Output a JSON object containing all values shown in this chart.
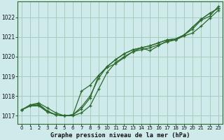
{
  "title": "Graphe pression niveau de la mer (hPa)",
  "bg_color": "#ceeaea",
  "grid_color": "#aaccbb",
  "line_color": "#2d6a2d",
  "marker": "+",
  "xlim": [
    -0.5,
    23.5
  ],
  "ylim": [
    1016.6,
    1022.8
  ],
  "yticks": [
    1017,
    1018,
    1019,
    1020,
    1021,
    1022
  ],
  "xticks": [
    0,
    1,
    2,
    3,
    4,
    5,
    6,
    7,
    8,
    9,
    10,
    11,
    12,
    13,
    14,
    15,
    16,
    17,
    18,
    19,
    20,
    21,
    22,
    23
  ],
  "series": [
    [
      1017.3,
      1017.55,
      1017.65,
      1017.4,
      1017.15,
      1017.0,
      1017.0,
      1017.15,
      1017.5,
      1018.35,
      1019.2,
      1019.7,
      1020.0,
      1020.25,
      1020.45,
      1020.3,
      1020.55,
      1020.8,
      1020.85,
      1021.1,
      1021.4,
      1021.85,
      1022.05,
      1022.55
    ],
    [
      1017.3,
      1017.55,
      1017.6,
      1017.25,
      1017.05,
      1017.0,
      1017.05,
      1017.45,
      1018.0,
      1018.9,
      1019.5,
      1019.85,
      1020.15,
      1020.35,
      1020.45,
      1020.55,
      1020.7,
      1020.85,
      1020.9,
      1021.1,
      1021.5,
      1021.9,
      1022.2,
      1022.45
    ],
    [
      1017.3,
      1017.5,
      1017.55,
      1017.2,
      1017.05,
      1017.0,
      1017.05,
      1017.35,
      1017.9,
      1019.05,
      1019.45,
      1019.65,
      1019.95,
      1020.25,
      1020.35,
      1020.45,
      1020.6,
      1020.75,
      1020.85,
      1021.05,
      1021.2,
      1021.55,
      1021.95,
      1022.35
    ],
    [
      1017.3,
      1017.5,
      1017.5,
      1017.2,
      1017.05,
      1017.0,
      1017.05,
      1018.25,
      1018.55,
      1019.05,
      1019.5,
      1019.85,
      1020.15,
      1020.35,
      1020.45,
      1020.55,
      1020.7,
      1020.85,
      1020.9,
      1021.1,
      1021.5,
      1021.9,
      1022.2,
      1022.45
    ]
  ]
}
